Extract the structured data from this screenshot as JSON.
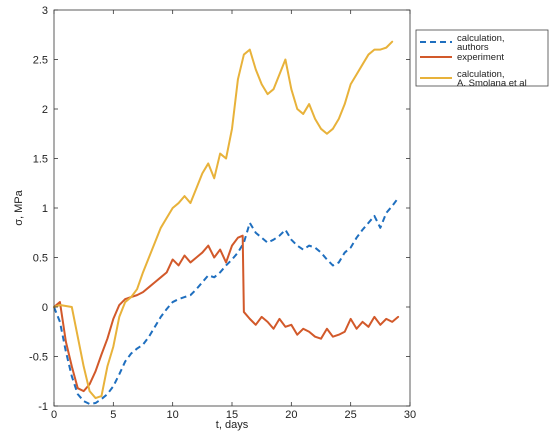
{
  "chart_data": {
    "type": "line",
    "xlabel": "t, days",
    "ylabel": "σ, MPa",
    "xlim": [
      0,
      30
    ],
    "ylim": [
      -1,
      3
    ],
    "xticks": [
      0,
      5,
      10,
      15,
      20,
      25,
      30
    ],
    "yticks": [
      -1,
      -0.5,
      0,
      0.5,
      1,
      1.5,
      2,
      2.5,
      3
    ],
    "grid": false,
    "legend_position": "outside-top-right",
    "legend": [
      [
        "calculation,",
        "authors"
      ],
      [
        "experiment"
      ],
      [
        "calculation,",
        "A. Smolana et al"
      ]
    ],
    "series": [
      {
        "color": "#1f6fbf",
        "dash": true,
        "x": [
          0,
          0.5,
          1,
          1.5,
          2,
          2.5,
          3,
          3.5,
          4,
          4.5,
          5,
          5.5,
          6,
          6.5,
          7,
          7.5,
          8,
          8.5,
          9,
          9.5,
          10,
          10.5,
          11,
          11.5,
          12,
          12.5,
          13,
          13.5,
          14,
          14.5,
          15,
          15.5,
          16,
          16.5,
          17,
          17.5,
          18,
          18.5,
          19,
          19.5,
          20,
          20.5,
          21,
          21.5,
          22,
          22.5,
          23,
          23.5,
          24,
          24.5,
          25,
          25.5,
          26,
          26.5,
          27,
          27.5,
          28,
          28.5,
          29
        ],
        "y": [
          0,
          -0.15,
          -0.45,
          -0.7,
          -0.88,
          -0.95,
          -0.98,
          -0.97,
          -0.93,
          -0.88,
          -0.8,
          -0.68,
          -0.55,
          -0.47,
          -0.42,
          -0.38,
          -0.3,
          -0.2,
          -0.1,
          -0.02,
          0.05,
          0.08,
          0.1,
          0.12,
          0.18,
          0.25,
          0.32,
          0.3,
          0.35,
          0.42,
          0.48,
          0.55,
          0.65,
          0.85,
          0.75,
          0.7,
          0.65,
          0.68,
          0.72,
          0.78,
          0.68,
          0.62,
          0.58,
          0.62,
          0.6,
          0.55,
          0.48,
          0.42,
          0.45,
          0.55,
          0.6,
          0.7,
          0.78,
          0.85,
          0.92,
          0.8,
          0.95,
          1.02,
          1.1
        ]
      },
      {
        "color": "#d2592a",
        "dash": false,
        "x": [
          0,
          0.5,
          1,
          1.5,
          2,
          2.5,
          3,
          3.5,
          4,
          4.5,
          5,
          5.5,
          6,
          6.5,
          7,
          7.5,
          8,
          8.5,
          9,
          9.5,
          10,
          10.5,
          11,
          11.5,
          12,
          12.5,
          13,
          13.5,
          14,
          14.5,
          15,
          15.5,
          15.9,
          16,
          16.5,
          17,
          17.5,
          18,
          18.5,
          19,
          19.5,
          20,
          20.5,
          21,
          21.5,
          22,
          22.5,
          23,
          23.5,
          24,
          24.5,
          25,
          25.5,
          26,
          26.5,
          27,
          27.5,
          28,
          28.5,
          29
        ],
        "y": [
          0,
          0.05,
          -0.35,
          -0.6,
          -0.82,
          -0.85,
          -0.78,
          -0.65,
          -0.48,
          -0.32,
          -0.12,
          0.02,
          0.08,
          0.1,
          0.12,
          0.15,
          0.2,
          0.25,
          0.3,
          0.35,
          0.48,
          0.42,
          0.52,
          0.45,
          0.5,
          0.55,
          0.62,
          0.5,
          0.58,
          0.45,
          0.62,
          0.7,
          0.72,
          -0.05,
          -0.12,
          -0.18,
          -0.1,
          -0.15,
          -0.22,
          -0.12,
          -0.2,
          -0.18,
          -0.28,
          -0.22,
          -0.25,
          -0.3,
          -0.32,
          -0.22,
          -0.3,
          -0.28,
          -0.25,
          -0.12,
          -0.22,
          -0.15,
          -0.2,
          -0.1,
          -0.18,
          -0.12,
          -0.15,
          -0.1
        ]
      },
      {
        "color": "#e8b23a",
        "dash": false,
        "x": [
          0,
          0.5,
          1,
          1.5,
          2,
          2.5,
          3,
          3.5,
          4,
          4.5,
          5,
          5.5,
          6,
          6.5,
          7,
          7.5,
          8,
          8.5,
          9,
          9.5,
          10,
          10.5,
          11,
          11.5,
          12,
          12.5,
          13,
          13.5,
          14,
          14.5,
          15,
          15.5,
          16,
          16.5,
          17,
          17.5,
          18,
          18.5,
          19,
          19.5,
          20,
          20.5,
          21,
          21.5,
          22,
          22.5,
          23,
          23.5,
          24,
          24.5,
          25,
          25.5,
          26,
          26.5,
          27,
          27.5,
          28,
          28.5
        ],
        "y": [
          0,
          0.02,
          0.01,
          0,
          -0.3,
          -0.6,
          -0.85,
          -0.92,
          -0.9,
          -0.6,
          -0.4,
          -0.1,
          0.05,
          0.1,
          0.18,
          0.35,
          0.5,
          0.65,
          0.8,
          0.9,
          1.0,
          1.05,
          1.12,
          1.05,
          1.2,
          1.35,
          1.45,
          1.3,
          1.55,
          1.5,
          1.8,
          2.3,
          2.55,
          2.6,
          2.4,
          2.25,
          2.15,
          2.2,
          2.35,
          2.5,
          2.2,
          2.0,
          1.95,
          2.05,
          1.9,
          1.8,
          1.75,
          1.8,
          1.9,
          2.05,
          2.25,
          2.35,
          2.45,
          2.55,
          2.6,
          2.6,
          2.62,
          2.68
        ]
      }
    ]
  }
}
